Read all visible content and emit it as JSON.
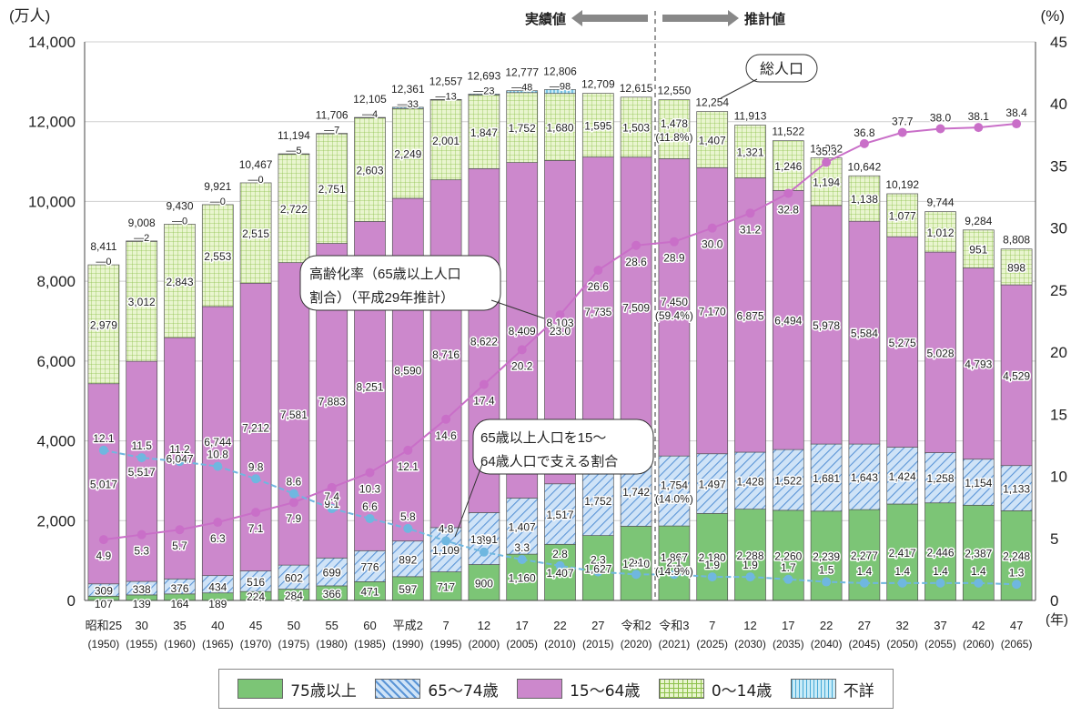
{
  "chart_data": {
    "type": "bar",
    "stacked": true,
    "y_left_unit": "(万人)",
    "y_right_unit": "(%)",
    "x_unit": "(年)",
    "ylim_left": [
      0,
      14000
    ],
    "yticks_left": [
      "0",
      "2,000",
      "4,000",
      "6,000",
      "8,000",
      "10,000",
      "12,000",
      "14,000"
    ],
    "ylim_right": [
      0,
      45
    ],
    "yticks_right": [
      "0",
      "5",
      "10",
      "15",
      "20",
      "25",
      "30",
      "35",
      "40",
      "45"
    ],
    "categories": [
      {
        "year": "昭和25",
        "west": "(1950)"
      },
      {
        "year": "30",
        "west": "(1955)"
      },
      {
        "year": "35",
        "west": "(1960)"
      },
      {
        "year": "40",
        "west": "(1965)"
      },
      {
        "year": "45",
        "west": "(1970)"
      },
      {
        "year": "50",
        "west": "(1975)"
      },
      {
        "year": "55",
        "west": "(1980)"
      },
      {
        "year": "60",
        "west": "(1985)"
      },
      {
        "year": "平成2",
        "west": "(1990)"
      },
      {
        "year": "7",
        "west": "(1995)"
      },
      {
        "year": "12",
        "west": "(2000)"
      },
      {
        "year": "17",
        "west": "(2005)"
      },
      {
        "year": "22",
        "west": "(2010)"
      },
      {
        "year": "27",
        "west": "(2015)"
      },
      {
        "year": "令和2",
        "west": "(2020)"
      },
      {
        "year": "令和3",
        "west": "(2021)"
      },
      {
        "year": "7",
        "west": "(2025)"
      },
      {
        "year": "12",
        "west": "(2030)"
      },
      {
        "year": "17",
        "west": "(2035)"
      },
      {
        "year": "22",
        "west": "(2040)"
      },
      {
        "year": "27",
        "west": "(2045)"
      },
      {
        "year": "32",
        "west": "(2050)"
      },
      {
        "year": "37",
        "west": "(2055)"
      },
      {
        "year": "42",
        "west": "(2060)"
      },
      {
        "year": "47",
        "west": "(2065)"
      }
    ],
    "series": [
      {
        "name": "75歳以上",
        "color": "#7cc576",
        "pattern": "solid",
        "values": [
          107,
          139,
          164,
          189,
          224,
          284,
          366,
          471,
          597,
          717,
          900,
          1160,
          1407,
          1627,
          1860,
          1867,
          2180,
          2288,
          2260,
          2239,
          2277,
          2417,
          2446,
          2387,
          2248
        ],
        "labels": [
          "107",
          "139",
          "164",
          "189",
          "224",
          "284",
          "366",
          "471",
          "597",
          "717",
          "900",
          "1,160",
          "1,407",
          "1,627",
          "1,860",
          "1,867\n(14.9%)",
          "2,180",
          "2,288",
          "2,260",
          "2,239",
          "2,277",
          "2,417",
          "2,446",
          "2,387",
          "2,248"
        ]
      },
      {
        "name": "65～74歳",
        "color": "#7fb3e8",
        "pattern": "hatch",
        "values": [
          309,
          338,
          376,
          434,
          516,
          602,
          699,
          776,
          892,
          1109,
          1301,
          1407,
          1517,
          1752,
          1742,
          1754,
          1497,
          1428,
          1522,
          1681,
          1643,
          1424,
          1258,
          1154,
          1133
        ],
        "labels": [
          "309",
          "338",
          "376",
          "434",
          "516",
          "602",
          "699",
          "776",
          "892",
          "1,109",
          "1,301",
          "1,407",
          "1,517",
          "1,752",
          "1,742",
          "1,754\n(14.0%)",
          "1,497",
          "1,428",
          "1,522",
          "1,681",
          "1,643",
          "1,424",
          "1,258",
          "1,154",
          "1,133"
        ]
      },
      {
        "name": "15～64歳",
        "color": "#cc88cc",
        "pattern": "solid",
        "values": [
          5017,
          5517,
          6047,
          6744,
          7212,
          7581,
          7883,
          8251,
          8590,
          8716,
          8622,
          8409,
          8103,
          7735,
          7509,
          7450,
          7170,
          6875,
          6494,
          5978,
          5584,
          5275,
          5028,
          4793,
          4529
        ],
        "labels": [
          "5,017",
          "5,517",
          "6,047",
          "6,744",
          "7,212",
          "7,581",
          "7,883",
          "8,251",
          "8,590",
          "8,716",
          "8,622",
          "8,409",
          "8,103",
          "7,735",
          "7,509",
          "7,450\n(59.4%)",
          "7,170",
          "6,875",
          "6,494",
          "5,978",
          "5,584",
          "5,275",
          "5,028",
          "4,793",
          "4,529"
        ]
      },
      {
        "name": "0～14歳",
        "color": "#d3eaa0",
        "pattern": "grid",
        "values": [
          2979,
          3012,
          2843,
          2553,
          2515,
          2722,
          2751,
          2603,
          2249,
          2001,
          1847,
          1752,
          1680,
          1595,
          1503,
          1478,
          1407,
          1321,
          1246,
          1194,
          1138,
          1077,
          1012,
          951,
          898
        ],
        "labels": [
          "2,979",
          "3,012",
          "2,843",
          "2,553",
          "2,515",
          "2,722",
          "2,751",
          "2,603",
          "2,249",
          "2,001",
          "1,847",
          "1,752",
          "1,680",
          "1,595",
          "1,503",
          "1,478\n(11.8%)",
          "1,407",
          "1,321",
          "1,246",
          "1,194",
          "1,138",
          "1,077",
          "1,012",
          "951",
          "898"
        ]
      },
      {
        "name": "不詳",
        "color": "#9fd8f0",
        "pattern": "vlines",
        "values": [
          0,
          2,
          0,
          0,
          0,
          5,
          7,
          4,
          33,
          13,
          23,
          48,
          98,
          0,
          0,
          0,
          0,
          0,
          0,
          0,
          0,
          0,
          0,
          0,
          0
        ],
        "labels": [
          "0",
          "2",
          "0",
          "0",
          "0",
          "5",
          "7",
          "4",
          "33",
          "13",
          "23",
          "48",
          "98",
          "",
          "",
          "",
          "",
          "",
          "",
          "",
          "",
          "",
          "",
          "",
          ""
        ]
      }
    ],
    "totals": [
      "8,411",
      "9,008",
      "9,430",
      "9,921",
      "10,467",
      "11,194",
      "11,706",
      "12,105",
      "12,361",
      "12,557",
      "12,693",
      "12,777",
      "12,806",
      "12,709",
      "12,615",
      "12,550",
      "12,254",
      "11,913",
      "11,522",
      "11,092",
      "10,642",
      "10,192",
      "9,744",
      "9,284",
      "8,808"
    ],
    "line_series": [
      {
        "name": "高齢化率(65歳以上人口割合)(平成29年推計)",
        "color": "#c96fc8",
        "values": [
          4.9,
          5.3,
          5.7,
          6.3,
          7.1,
          7.9,
          9.1,
          10.3,
          12.1,
          14.6,
          17.4,
          20.2,
          23.0,
          26.6,
          28.6,
          28.9,
          30.0,
          31.2,
          32.8,
          35.3,
          36.8,
          37.7,
          38.0,
          38.1,
          38.4
        ],
        "labels": [
          "4.9",
          "5.3",
          "5.7",
          "6.3",
          "7.1",
          "7.9",
          "9.1",
          "10.3",
          "12.1",
          "14.6",
          "17.4",
          "20.2",
          "23.0",
          "26.6",
          "28.6",
          "28.9",
          "30.0",
          "31.2",
          "32.8",
          "35.3",
          "36.8",
          "37.7",
          "38.0",
          "38.1",
          "38.4"
        ]
      },
      {
        "name": "65歳以上人口を15～64歳人口で支える割合",
        "color": "#6fb7e0",
        "values": [
          12.1,
          11.5,
          11.2,
          10.8,
          9.8,
          8.6,
          7.4,
          6.6,
          5.8,
          4.8,
          3.9,
          3.3,
          2.8,
          2.3,
          2.1,
          2.1,
          1.9,
          1.9,
          1.7,
          1.5,
          1.4,
          1.4,
          1.4,
          1.4,
          1.3
        ],
        "labels": [
          "12.1",
          "11.5",
          "11.2",
          "10.8",
          "9.8",
          "8.6",
          "7.4",
          "6.6",
          "5.8",
          "4.8",
          "3.9",
          "3.3",
          "2.8",
          "2.3",
          "2.1",
          "2.1",
          "1.9",
          "1.9",
          "1.7",
          "1.5",
          "1.4",
          "1.4",
          "1.4",
          "1.4",
          "1.3"
        ]
      }
    ],
    "annotations": {
      "actual": "実績値",
      "projected": "推計値",
      "total_pop": "総人口",
      "aging_rate_line1": "高齢化率（65歳以上人口",
      "aging_rate_line2": "割合）（平成29年推計）",
      "support_line1": "65歳以上人口を15～",
      "support_line2": "64歳人口で支える割合"
    },
    "legend": [
      "75歳以上",
      "65～74歳",
      "15～64歳",
      "0～14歳",
      "不詳"
    ]
  }
}
